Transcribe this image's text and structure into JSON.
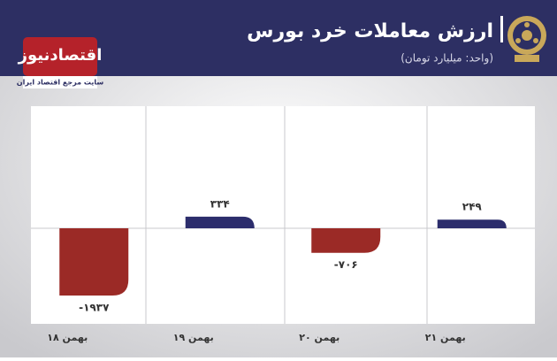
{
  "chart_data": {
    "type": "bar",
    "title": "ارزش معاملات خرد بورس",
    "subtitle": "(واحد: میلیارد تومان)",
    "brand": "اقتصادنیوز",
    "brand_tagline": "سایت مرجع اقتصاد ایران",
    "categories": [
      "۱۸ بهمن",
      "۱۹ بهمن",
      "۲۰ بهمن",
      "۲۱ بهمن"
    ],
    "values": [
      -1937,
      334,
      -706,
      249
    ],
    "value_labels": [
      "-۱۹۳۷",
      "۳۳۴",
      "-۷۰۶",
      "۲۴۹"
    ],
    "colors": [
      "#9b2a26",
      "#2c2d6c",
      "#9b2a26",
      "#2c2d6c"
    ]
  }
}
